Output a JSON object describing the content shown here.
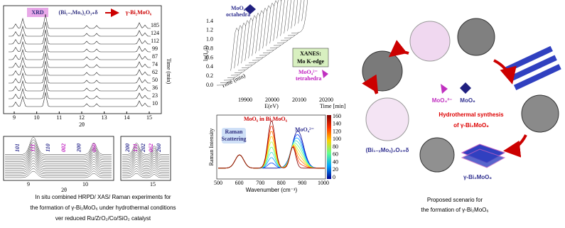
{
  "xrd": {
    "tag": "XRD",
    "phase_start": "(Bi₁₋ₓMoₓ)₂O₃₊δ",
    "phase_end": "γ-Bi₂MoO₆",
    "time_axis": "Time (min)",
    "time_labels": [
      "185",
      "124",
      "112",
      "99",
      "87",
      "74",
      "62",
      "50",
      "36",
      "23",
      "10"
    ],
    "x_ticks": [
      "9",
      "10",
      "11",
      "12",
      "13",
      "14",
      "15"
    ],
    "x_axis": "2θ"
  },
  "zoom": {
    "left_peaks": [
      "101",
      "111",
      "110",
      "002",
      "200",
      "060"
    ],
    "right_peaks": [
      "200",
      "131",
      "202",
      "062",
      "260"
    ],
    "left_ticks": [
      "9",
      "10"
    ],
    "right_ticks": [
      "15"
    ],
    "x_axis": "2θ"
  },
  "caption": [
    "In situ combined HRPD/ XAS/ Raman experiments for",
    "the formation of γ-Bi₂MoO₆ under hydrothermal conditions",
    "ver reduced Ru/ZrO₂/Co/SiO₂ catalyst"
  ],
  "xanes": {
    "octahedra": [
      "MoO₆",
      "octahedra"
    ],
    "edge": [
      "XANES:",
      "Mo K-edge"
    ],
    "tetrahedra": [
      "MoO₄²⁻",
      "tetrahedra"
    ],
    "y_axis": "ln(I₀/I)",
    "y_ticks": [
      "0.0",
      "0.2",
      "0.4",
      "0.6",
      "0.8",
      "1.0",
      "1.2",
      "1.4"
    ],
    "time_axis": "Time (min)",
    "x_axis": "E(eV)",
    "x_ticks": [
      "19900",
      "20000",
      "20100",
      "20200"
    ],
    "time_corner": "Time [min]"
  },
  "raman": {
    "label_oct": "MoO₆ in Bi₂MoO₆",
    "label_tet": "MoO₄²⁻",
    "legend": [
      "Raman",
      "Scattering"
    ],
    "y_axis": "Raman Intensity",
    "x_axis": "Wavenumber (cm⁻¹)",
    "x_ticks": [
      "500",
      "600",
      "700",
      "800",
      "900",
      "1000"
    ],
    "colorbar_ticks": [
      "160",
      "140",
      "120",
      "100",
      "80",
      "60",
      "40",
      "20",
      "0"
    ]
  },
  "scheme": {
    "title": [
      "Hydrothermal synthesis",
      "of γ-Bi₂MoO₆"
    ],
    "tet": "MoO₄²⁻",
    "oct": "MoO₆",
    "start": "(Bi₁₋ₓMoₓ)₂O₃₊δ",
    "end": "γ-Bi₂MoO₆",
    "caption": [
      "Proposed scenario for",
      "the formation of γ-Bi₂MoO₆"
    ]
  }
}
